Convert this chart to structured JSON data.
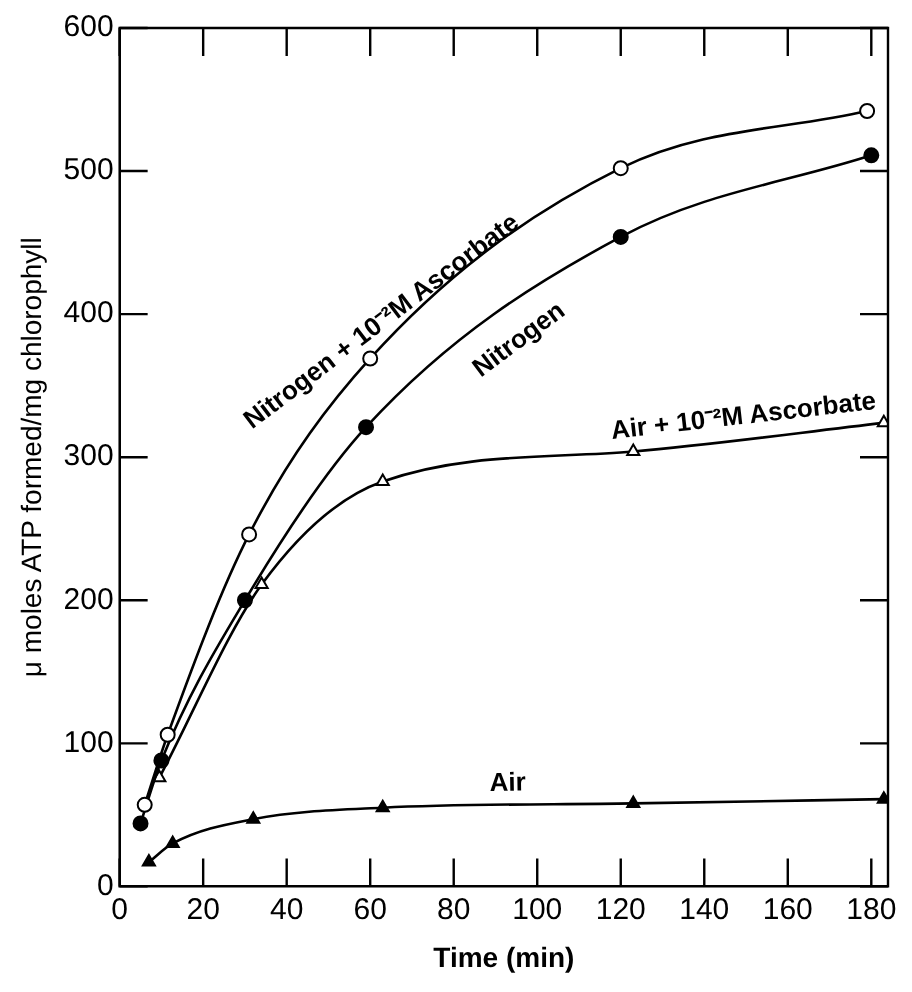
{
  "chart_data": {
    "type": "line",
    "xlabel": "Time (min)",
    "ylabel": "μ moles ATP formed/mg chlorophyll",
    "xlim": [
      0,
      184
    ],
    "xticks": [
      0,
      20,
      40,
      60,
      80,
      100,
      120,
      140,
      160,
      180
    ],
    "ylim": [
      0,
      600
    ],
    "yticks": [
      0,
      100,
      200,
      300,
      400,
      500,
      600
    ],
    "grid": false,
    "legend": false,
    "series": [
      {
        "name": "Nitrogen + 10⁻²M Ascorbate",
        "color": "#000000",
        "marker": "circle-open",
        "x": [
          6,
          11.5,
          31,
          60,
          120,
          179
        ],
        "values": [
          57,
          106,
          246,
          369,
          502,
          542
        ]
      },
      {
        "name": "Nitrogen",
        "color": "#000000",
        "marker": "circle",
        "x": [
          5,
          10,
          30,
          59,
          120,
          180
        ],
        "values": [
          44,
          88,
          200,
          321,
          454,
          511
        ]
      },
      {
        "name": "Air + 10⁻²M Ascorbate",
        "color": "#000000",
        "marker": "triangle-open",
        "x": [
          9.5,
          34,
          63,
          123,
          183
        ],
        "values": [
          76,
          211,
          283,
          304,
          324
        ]
      },
      {
        "name": "Air",
        "color": "#000000",
        "marker": "triangle",
        "x": [
          7,
          12.7,
          32,
          63,
          123,
          183
        ],
        "values": [
          17,
          30,
          47,
          55,
          58,
          61
        ]
      }
    ]
  }
}
